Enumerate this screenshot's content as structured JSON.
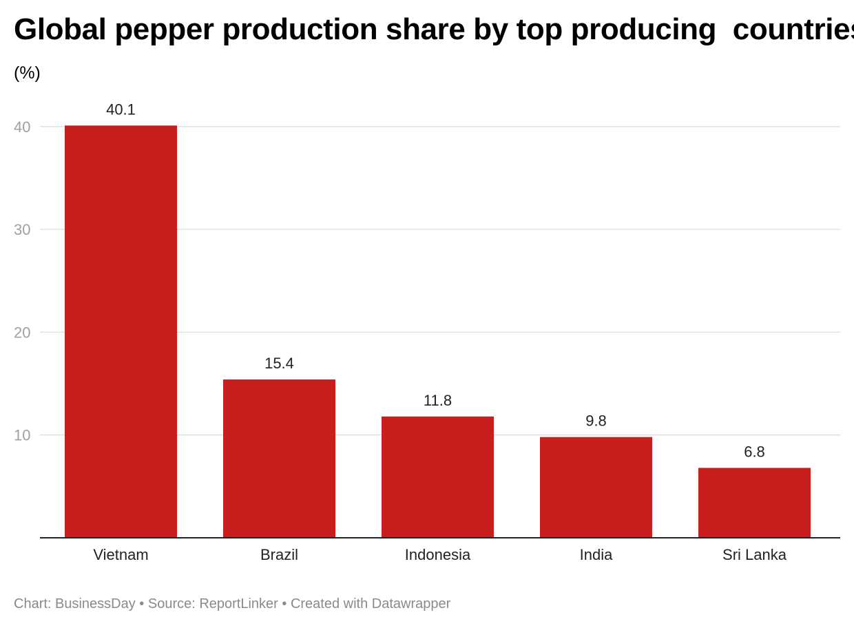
{
  "chart_data": {
    "type": "bar",
    "title": "Global pepper production share by top producing  countries",
    "ylabel": "(%)",
    "xlabel": "",
    "categories": [
      "Vietnam",
      "Brazil",
      "Indonesia",
      "India",
      "Sri Lanka"
    ],
    "values": [
      40.1,
      15.4,
      11.8,
      9.8,
      6.8
    ],
    "value_labels": [
      "40.1",
      "15.4",
      "11.8",
      "9.8",
      "6.8"
    ],
    "ylim": [
      0,
      40
    ],
    "yticks": [
      10,
      20,
      30,
      40
    ],
    "grid": true,
    "legend": "none",
    "bar_color": "#c81e1e"
  },
  "footer": {
    "text": "Chart: BusinessDay • Source: ReportLinker • Created with Datawrapper"
  }
}
